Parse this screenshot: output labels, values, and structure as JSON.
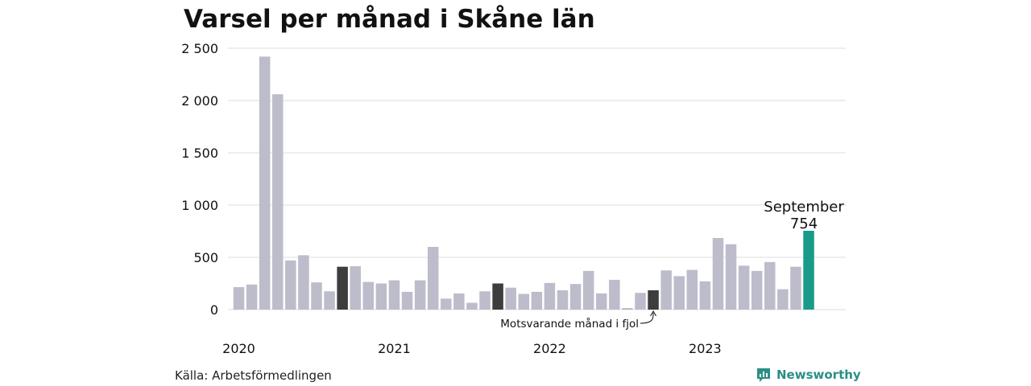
{
  "colors": {
    "default_bar": "#bdbccb",
    "comparison_bar": "#3d3d3d",
    "highlight_bar": "#1a9b8a",
    "brand": "#2a8f86",
    "grid": "#dddddd"
  },
  "footer": {
    "source": "Källa: Arbetsförmedlingen",
    "brand_name": "Newsworthy",
    "brand_icon": "bar-chart-icon"
  },
  "chart_data": {
    "type": "bar",
    "title": "Varsel per månad i Skåne län",
    "xlabel": "",
    "ylabel": "",
    "ylim": [
      0,
      2500
    ],
    "yticks": [
      0,
      500,
      1000,
      1500,
      2000,
      2500
    ],
    "ytick_labels": [
      "0",
      "500",
      "1 000",
      "1 500",
      "2 000",
      "2 500"
    ],
    "grid": true,
    "year_labels": [
      {
        "label": "2020",
        "index": 0
      },
      {
        "label": "2021",
        "index": 12
      },
      {
        "label": "2022",
        "index": 24
      },
      {
        "label": "2023",
        "index": 36
      }
    ],
    "categories": [
      "2020-01",
      "2020-02",
      "2020-03",
      "2020-04",
      "2020-05",
      "2020-06",
      "2020-07",
      "2020-08",
      "2020-09",
      "2020-10",
      "2020-11",
      "2020-12",
      "2021-01",
      "2021-02",
      "2021-03",
      "2021-04",
      "2021-05",
      "2021-06",
      "2021-07",
      "2021-08",
      "2021-09",
      "2021-10",
      "2021-11",
      "2021-12",
      "2022-01",
      "2022-02",
      "2022-03",
      "2022-04",
      "2022-05",
      "2022-06",
      "2022-07",
      "2022-08",
      "2022-09",
      "2022-10",
      "2022-11",
      "2022-12",
      "2023-01",
      "2023-02",
      "2023-03",
      "2023-04",
      "2023-05",
      "2023-06",
      "2023-07",
      "2023-08",
      "2023-09"
    ],
    "values": [
      215,
      240,
      2420,
      2060,
      470,
      520,
      260,
      175,
      410,
      415,
      265,
      250,
      280,
      170,
      280,
      600,
      105,
      155,
      65,
      175,
      250,
      210,
      150,
      170,
      255,
      185,
      245,
      370,
      155,
      285,
      15,
      160,
      185,
      375,
      320,
      380,
      270,
      685,
      625,
      420,
      370,
      455,
      195,
      410,
      754
    ],
    "comparison_indices": [
      8,
      20,
      32
    ],
    "highlight_index": 44,
    "highlight_label": {
      "month": "September",
      "value": "754"
    },
    "annotation": {
      "text": "Motsvarande månad i fjol",
      "target_index": 32
    }
  }
}
